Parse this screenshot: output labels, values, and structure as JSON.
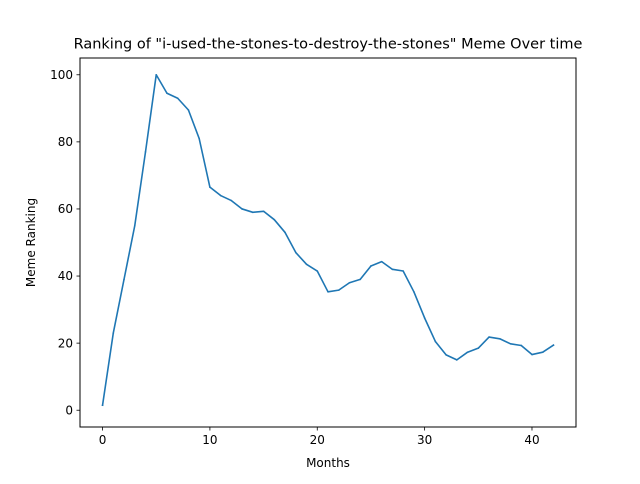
{
  "chart_data": {
    "type": "line",
    "title": "Ranking of \"i-used-the-stones-to-destroy-the-stones\" Meme Over time",
    "xlabel": "Months",
    "ylabel": "Meme Ranking",
    "xlim": [
      -2.1,
      44.1
    ],
    "ylim": [
      -5,
      105
    ],
    "xticks": [
      0,
      10,
      20,
      30,
      40
    ],
    "yticks": [
      0,
      20,
      40,
      60,
      80,
      100
    ],
    "grid": false,
    "series": [
      {
        "color": "#1f77b4",
        "x": [
          0,
          1,
          2,
          3,
          4,
          5,
          6,
          7,
          8,
          9,
          10,
          11,
          12,
          13,
          14,
          15,
          16,
          17,
          18,
          19,
          20,
          21,
          22,
          23,
          24,
          25,
          26,
          27,
          28,
          29,
          30,
          31,
          32,
          33,
          34,
          35,
          36,
          37,
          38,
          39,
          40,
          41,
          42
        ],
        "values": [
          1.5,
          23,
          39,
          55,
          77,
          100,
          94.5,
          93,
          89.5,
          81,
          66.5,
          64,
          62.5,
          60,
          59,
          59.3,
          56.8,
          53,
          47,
          43.5,
          41.5,
          35.3,
          35.8,
          38,
          39,
          43,
          44.3,
          42,
          41.5,
          35.3,
          27.5,
          20.5,
          16.5,
          15,
          17.3,
          18.5,
          21.8,
          21.3,
          19.8,
          19.3,
          16.6,
          17.3,
          19.4
        ]
      }
    ]
  }
}
